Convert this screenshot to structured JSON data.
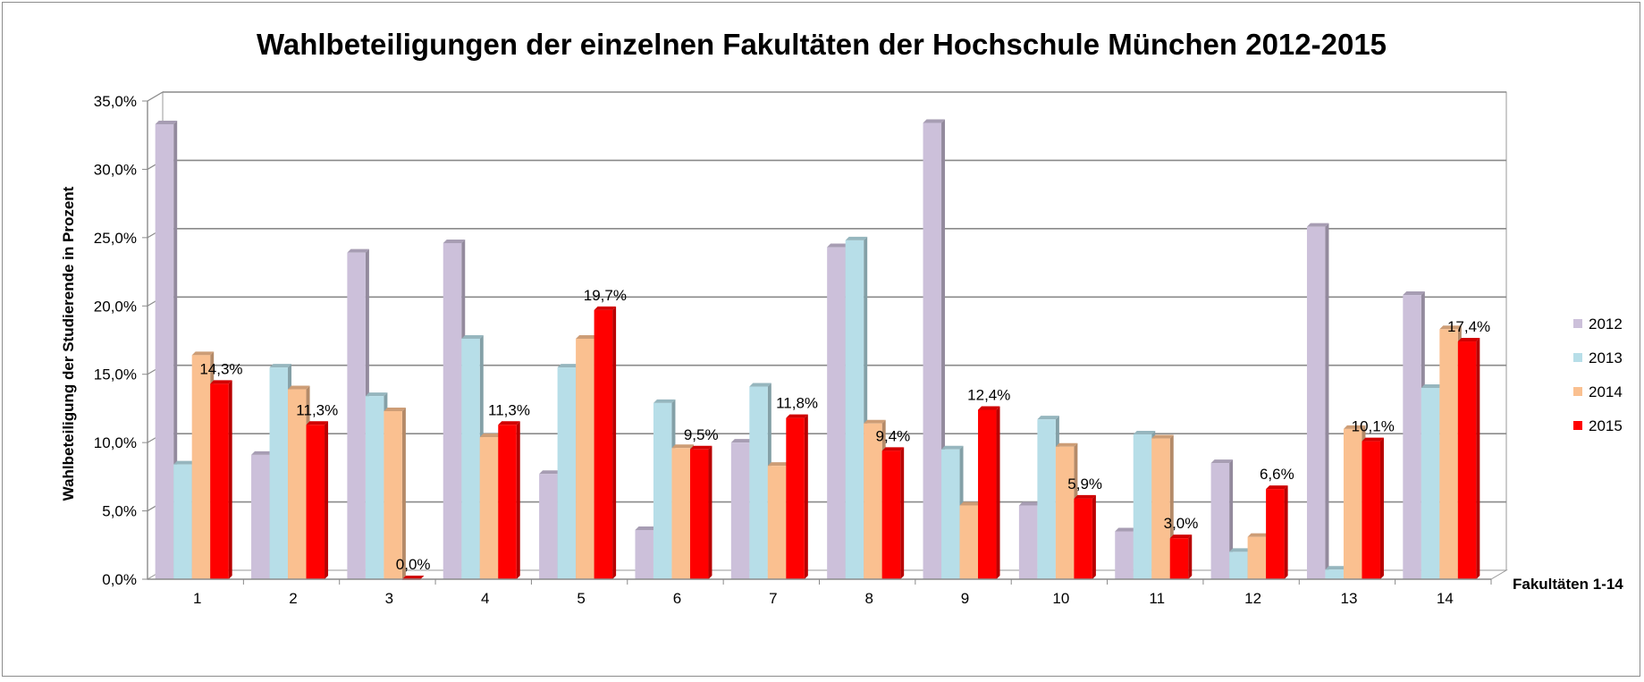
{
  "chart_data": {
    "type": "bar",
    "title": "Wahlbeteiligungen der einzelnen Fakultäten der Hochschule München 2012-2015",
    "xlabel": "Fakultäten 1-14",
    "ylabel": "Wahlbeteiligung der Studierende in Prozent",
    "ylim": [
      0,
      35
    ],
    "yticks": [
      "0,0%",
      "5,0%",
      "10,0%",
      "15,0%",
      "20,0%",
      "25,0%",
      "30,0%",
      "35,0%"
    ],
    "categories": [
      "1",
      "2",
      "3",
      "4",
      "5",
      "6",
      "7",
      "8",
      "9",
      "10",
      "11",
      "12",
      "13",
      "14"
    ],
    "series": [
      {
        "name": "2012",
        "color": "#ccc0da",
        "values": [
          33.3,
          9.1,
          23.9,
          24.6,
          7.7,
          3.6,
          10.0,
          24.3,
          33.4,
          5.4,
          3.5,
          8.5,
          25.8,
          20.8
        ]
      },
      {
        "name": "2013",
        "color": "#b7dee8",
        "values": [
          8.4,
          15.5,
          13.4,
          17.6,
          15.5,
          12.9,
          14.1,
          24.8,
          9.5,
          11.7,
          10.6,
          2.0,
          0.7,
          14.0
        ]
      },
      {
        "name": "2014",
        "color": "#fac090",
        "values": [
          16.4,
          13.9,
          12.3,
          10.4,
          17.6,
          9.6,
          8.3,
          11.4,
          5.4,
          9.7,
          10.3,
          3.1,
          11.0,
          18.3
        ]
      },
      {
        "name": "2015",
        "color": "#ff0000",
        "values": [
          14.3,
          11.3,
          0.0,
          11.3,
          19.7,
          9.5,
          11.8,
          9.4,
          12.4,
          5.9,
          3.0,
          6.6,
          10.1,
          17.4
        ]
      }
    ],
    "data_labels": {
      "series": "2015",
      "texts": [
        "14,3%",
        "11,3%",
        "0,0%",
        "11,3%",
        "19,7%",
        "9,5%",
        "11,8%",
        "9,4%",
        "12,4%",
        "5,9%",
        "3,0%",
        "6,6%",
        "10,1%",
        "17,4%"
      ]
    },
    "grid": true,
    "legend": "right"
  }
}
